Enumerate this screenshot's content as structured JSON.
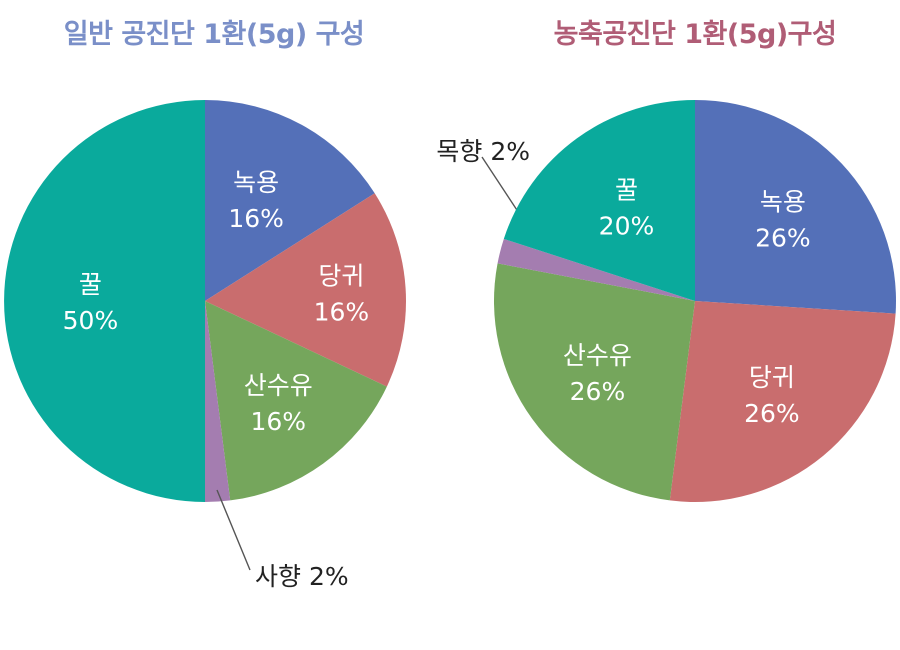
{
  "colors": {
    "title_left": "#7a8fc8",
    "title_right": "#b05d76",
    "nokyong": "#5470b8",
    "danggwi": "#c96d6e",
    "sansuyu": "#75a65c",
    "hyang": "#a47db0",
    "ggul": "#0aaa9c",
    "leader": "#555555"
  },
  "chart_data": [
    {
      "type": "pie",
      "title": "일반 공진단 1환(5g) 구성",
      "slices": [
        {
          "label": "녹용",
          "value": 16,
          "value_label": "16%",
          "color": "#5470b8"
        },
        {
          "label": "당귀",
          "value": 16,
          "value_label": "16%",
          "color": "#c96d6e"
        },
        {
          "label": "산수유",
          "value": 16,
          "value_label": "16%",
          "color": "#75a65c"
        },
        {
          "label": "사향",
          "value": 2,
          "value_label": "2%",
          "color": "#a47db0",
          "callout": true
        },
        {
          "label": "꿀",
          "value": 50,
          "value_label": "50%",
          "color": "#0aaa9c"
        }
      ]
    },
    {
      "type": "pie",
      "title": "농축공진단 1환(5g)구성",
      "slices": [
        {
          "label": "녹용",
          "value": 26,
          "value_label": "26%",
          "color": "#5470b8"
        },
        {
          "label": "당귀",
          "value": 26,
          "value_label": "26%",
          "color": "#c96d6e"
        },
        {
          "label": "산수유",
          "value": 26,
          "value_label": "26%",
          "color": "#75a65c"
        },
        {
          "label": "목향",
          "value": 2,
          "value_label": "2%",
          "color": "#a47db0",
          "callout": true
        },
        {
          "label": "꿀",
          "value": 20,
          "value_label": "20%",
          "color": "#0aaa9c"
        }
      ]
    }
  ]
}
